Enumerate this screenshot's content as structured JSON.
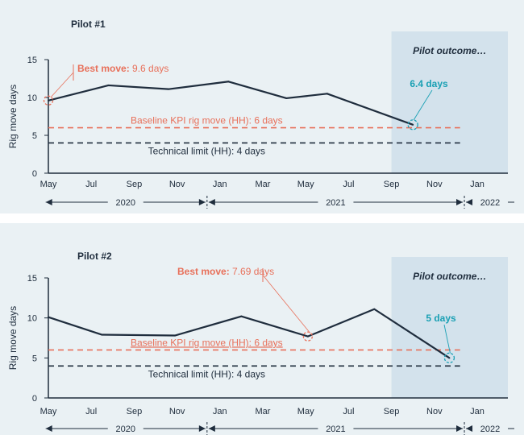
{
  "colors": {
    "line": "#1f2d3d",
    "baseline": "#e8705a",
    "techlimit": "#1f2d3d",
    "outcome": "#1aa0b4",
    "outcome_bg": "#d3e2ec",
    "axis_text": "#1f2d3d"
  },
  "chart_data": [
    {
      "type": "line",
      "title": "Pilot #1",
      "ylabel": "Rig move days",
      "ylim": [
        0,
        15
      ],
      "yticks": [
        "0",
        "5",
        "10",
        "15"
      ],
      "xticks": [
        "May",
        "Jul",
        "Sep",
        "Nov",
        "Jan",
        "Mar",
        "May",
        "Jul",
        "Sep",
        "Nov",
        "Jan"
      ],
      "years": [
        "2020",
        "2021",
        "2022"
      ],
      "x_month_index": [
        0,
        2.8,
        5.6,
        8.4,
        11.1,
        13,
        17
      ],
      "values": [
        9.6,
        11.6,
        11.1,
        12.1,
        9.9,
        10.5,
        6.4
      ],
      "baseline": {
        "value": 6,
        "label": "Baseline KPI rig move (HH): 6 days"
      },
      "technical_limit": {
        "value": 4,
        "label": "Technical limit (HH): 4 days"
      },
      "best_move": {
        "index": 0,
        "label_bold": "Best move:",
        "label_value": "9.6 days"
      },
      "outcome": {
        "index": 6,
        "label": "6.4 days",
        "region_title": "Pilot outcome…",
        "region_start_month": 16
      }
    },
    {
      "type": "line",
      "title": "Pilot #2",
      "ylabel": "Rig move days",
      "ylim": [
        0,
        15
      ],
      "yticks": [
        "0",
        "5",
        "10",
        "15"
      ],
      "xticks": [
        "May",
        "Jul",
        "Sep",
        "Nov",
        "Jan",
        "Mar",
        "May",
        "Jul",
        "Sep",
        "Nov",
        "Jan"
      ],
      "years": [
        "2020",
        "2021",
        "2022"
      ],
      "x_month_index": [
        0,
        2.5,
        5.9,
        9,
        12.1,
        15.2,
        18.7
      ],
      "values": [
        10.1,
        7.9,
        7.8,
        10.2,
        7.69,
        11.1,
        5
      ],
      "baseline": {
        "value": 6,
        "label": "Baseline KPI rig move (HH): 6 days"
      },
      "technical_limit": {
        "value": 4,
        "label": "Technical limit (HH): 4 days"
      },
      "best_move": {
        "index": 4,
        "label_bold": "Best move:",
        "label_value": "7.69 days"
      },
      "outcome": {
        "index": 6,
        "label": "5 days",
        "region_title": "Pilot outcome…",
        "region_start_month": 16
      }
    }
  ]
}
